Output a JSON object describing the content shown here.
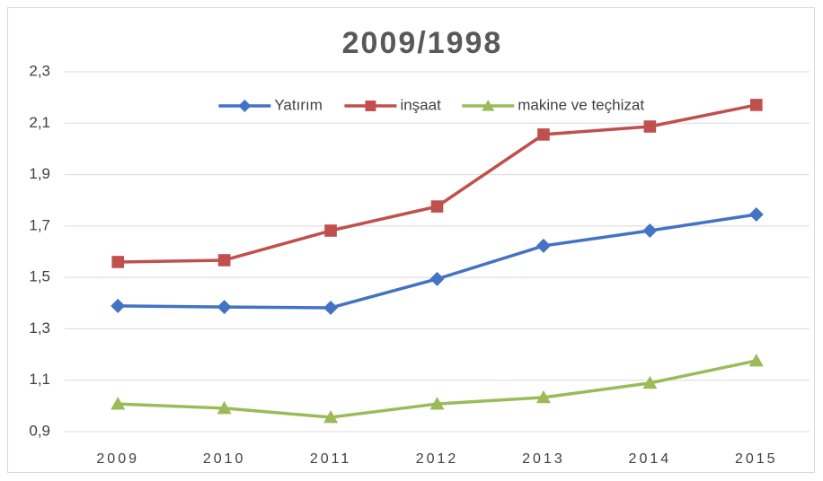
{
  "chart_data": {
    "type": "line",
    "title": "2009/1998",
    "categories": [
      "2009",
      "2010",
      "2011",
      "2012",
      "2013",
      "2014",
      "2015"
    ],
    "series": [
      {
        "name": "Yatırım",
        "color": "#4472c4",
        "marker": "diamond",
        "values": [
          1.389,
          1.385,
          1.382,
          1.494,
          1.623,
          1.682,
          1.745
        ]
      },
      {
        "name": "inşaat",
        "color": "#c0504d",
        "marker": "square",
        "values": [
          1.56,
          1.567,
          1.682,
          1.776,
          2.056,
          2.087,
          2.171
        ]
      },
      {
        "name": "makine ve teçhizat",
        "color": "#9bbb59",
        "marker": "triangle",
        "values": [
          1.008,
          0.991,
          0.956,
          1.008,
          1.033,
          1.089,
          1.176
        ]
      }
    ],
    "ylim": [
      0.9,
      2.3
    ],
    "yticks": [
      {
        "value": 0.9,
        "label": "0,9"
      },
      {
        "value": 1.1,
        "label": "1,1"
      },
      {
        "value": 1.3,
        "label": "1,3"
      },
      {
        "value": 1.5,
        "label": "1,5"
      },
      {
        "value": 1.7,
        "label": "1,7"
      },
      {
        "value": 1.9,
        "label": "1,9"
      },
      {
        "value": 2.1,
        "label": "2,1"
      },
      {
        "value": 2.3,
        "label": "2,3"
      }
    ],
    "grid": true,
    "legend": "top"
  }
}
